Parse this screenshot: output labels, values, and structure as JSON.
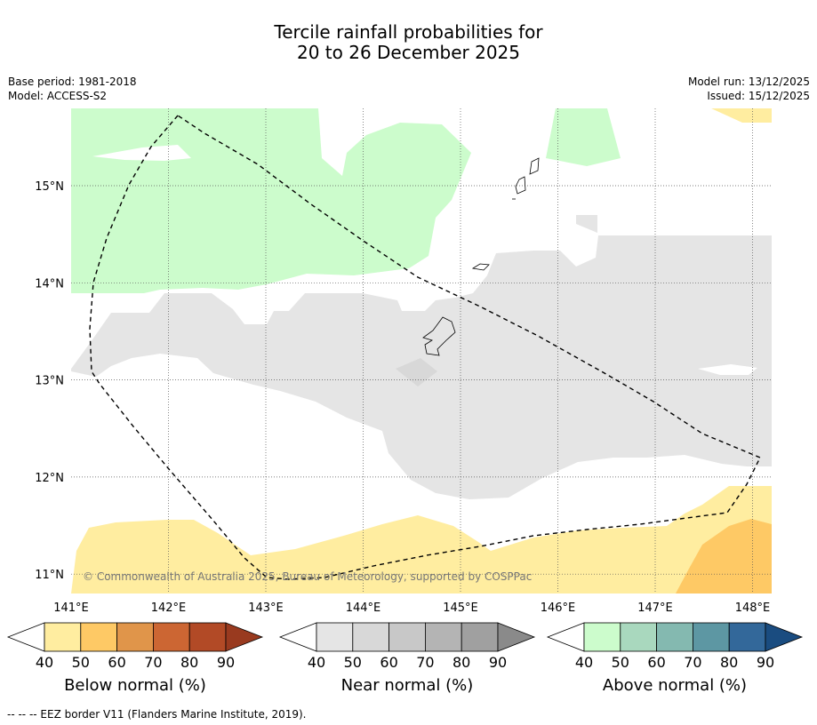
{
  "title": {
    "line1": "Tercile rainfall probabilities for",
    "line2": "20 to 26 December 2025"
  },
  "meta_left": {
    "base_period": "Base period: 1981-2018",
    "model": "Model: ACCESS-S2"
  },
  "meta_right": {
    "model_run": "Model run: 13/12/2025",
    "issued": "Issued: 15/12/2025"
  },
  "map": {
    "lon_labels": [
      "141°E",
      "142°E",
      "143°E",
      "144°E",
      "145°E",
      "146°E",
      "147°E",
      "148°E"
    ],
    "lat_labels": [
      "15°N",
      "14°N",
      "13°N",
      "12°N",
      "11°N"
    ],
    "copyright": "© Commonwealth of Australia 2025, Bureau of Meteorology, supported by COSPPac"
  },
  "colorbars": [
    {
      "label": "Below normal (%)",
      "ticks": [
        "40",
        "50",
        "60",
        "70",
        "80",
        "90"
      ],
      "colors": [
        "#ffeda0",
        "#fec965",
        "#e0954a",
        "#cc6633",
        "#b24a26",
        "#993a1f"
      ]
    },
    {
      "label": "Near normal (%)",
      "ticks": [
        "40",
        "50",
        "60",
        "70",
        "80",
        "90"
      ],
      "colors": [
        "#e5e5e5",
        "#d8d8d8",
        "#c8c8c8",
        "#b4b4b4",
        "#a0a0a0",
        "#8a8a8a"
      ]
    },
    {
      "label": "Above normal (%)",
      "ticks": [
        "40",
        "50",
        "60",
        "70",
        "80",
        "90"
      ],
      "colors": [
        "#ccfccc",
        "#a9d8be",
        "#84b9b0",
        "#5d97a3",
        "#33689a",
        "#1a4c80"
      ]
    }
  ],
  "footer": "--  --  -- EEZ border V11 (Flanders Marine Institute, 2019)."
}
